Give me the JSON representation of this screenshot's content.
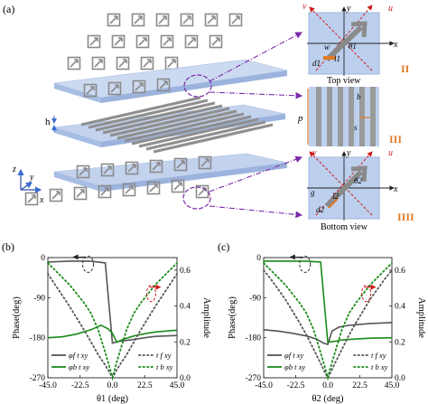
{
  "panel_a": {
    "label": "(a)",
    "h_label": "h",
    "p_label": "p",
    "axes": {
      "z": "z",
      "y": "y",
      "x": "x"
    },
    "top_view": {
      "u": "u",
      "v": "v",
      "x": "x",
      "y": "y",
      "w": "w",
      "l1": "l1",
      "d1": "d1",
      "theta1": "θ1",
      "caption": "Top view",
      "marker": "II"
    },
    "middle_view": {
      "b": "b",
      "s": "s",
      "marker": "III"
    },
    "bottom_view": {
      "u": "u",
      "v": "v",
      "x": "x",
      "y": "y",
      "g": "g",
      "l2": "l2",
      "d2": "d2",
      "theta2": "θ2",
      "caption": "Bottom view",
      "marker": "IIII"
    },
    "colors": {
      "plate": "#bcd0ee",
      "grating": "#a9a9a9",
      "arrow": "#8a8a8a",
      "dash": "#7a2aa8",
      "accent": "#e07b28"
    }
  },
  "chart_data": [
    {
      "type": "line",
      "panel": "(b)",
      "xlabel": "θ1 (deg)",
      "ylabel": "Phase(deg)",
      "y2label": "Amplitude",
      "xlim": [
        -45,
        45
      ],
      "ylim": [
        -270,
        0
      ],
      "y2lim": [
        0,
        0.67
      ],
      "xticks": [
        "-45.0",
        "-22.5",
        "0.0",
        "22.5",
        "45.0"
      ],
      "yticks": [
        "0",
        "-90",
        "-180",
        "-270"
      ],
      "y2ticks": [
        "0.0",
        "0.2",
        "0.4",
        "0.6"
      ],
      "legend": [
        "φf t xy",
        "φb t xy",
        "t f xy",
        "t b xy"
      ],
      "series": [
        {
          "name": "φf t xy",
          "axis": "left",
          "style": "solid",
          "color": "#555555",
          "x": [
            -45,
            -30,
            -15,
            -10,
            -5,
            0,
            5,
            10,
            15,
            22.5,
            30,
            45
          ],
          "y": [
            -10,
            -8,
            -8,
            -10,
            -12,
            -192,
            -188,
            -186,
            -184,
            -180,
            -177,
            -175
          ]
        },
        {
          "name": "φb t xy",
          "axis": "left",
          "style": "solid",
          "color": "#1a8a1a",
          "x": [
            -45,
            -35,
            -25,
            -15,
            -8,
            -3,
            0,
            3,
            8,
            15,
            22.5,
            30,
            45
          ],
          "y": [
            -180,
            -178,
            -172,
            -162,
            -152,
            -160,
            -170,
            -190,
            -183,
            -176,
            -171,
            -167,
            -163
          ]
        },
        {
          "name": "t f xy",
          "axis": "right",
          "style": "dotted",
          "color": "#555555",
          "x": [
            -45,
            -40,
            -30,
            -20,
            -15,
            -10,
            -5,
            -2,
            0,
            2,
            5,
            10,
            15,
            20,
            30,
            40,
            45
          ],
          "y": [
            0.58,
            0.52,
            0.4,
            0.27,
            0.2,
            0.13,
            0.07,
            0.03,
            0.0,
            0.03,
            0.07,
            0.13,
            0.2,
            0.27,
            0.4,
            0.52,
            0.58
          ]
        },
        {
          "name": "t b xy",
          "axis": "right",
          "style": "dotted",
          "color": "#1a8a1a",
          "x": [
            -45,
            -40,
            -30,
            -20,
            -15,
            -10,
            -5,
            -2,
            0,
            2,
            5,
            10,
            15,
            20,
            30,
            40,
            45
          ],
          "y": [
            0.64,
            0.6,
            0.52,
            0.42,
            0.36,
            0.27,
            0.14,
            0.06,
            0.0,
            0.06,
            0.14,
            0.27,
            0.36,
            0.42,
            0.52,
            0.6,
            0.64
          ]
        }
      ]
    },
    {
      "type": "line",
      "panel": "(c)",
      "xlabel": "θ2 (deg)",
      "ylabel": "Phase(deg)",
      "y2label": "Amplitude",
      "xlim": [
        -45,
        45
      ],
      "ylim": [
        -270,
        0
      ],
      "y2lim": [
        0,
        0.67
      ],
      "xticks": [
        "-45.0",
        "-22.5",
        "0.0",
        "22.5",
        "45.0"
      ],
      "yticks": [
        "0",
        "-90",
        "-180",
        "-270"
      ],
      "y2ticks": [
        "0.0",
        "0.2",
        "0.4",
        "0.6"
      ],
      "legend": [
        "φf t xy",
        "φb t xy",
        "t f xy",
        "t b xy"
      ],
      "series": [
        {
          "name": "φf t xy",
          "axis": "left",
          "style": "solid",
          "color": "#555555",
          "x": [
            -45,
            -35,
            -25,
            -15,
            -8,
            -3,
            0,
            3,
            8,
            15,
            22.5,
            30,
            45
          ],
          "y": [
            -162,
            -165,
            -170,
            -176,
            -183,
            -192,
            -195,
            -165,
            -156,
            -152,
            -150,
            -148,
            -146
          ]
        },
        {
          "name": "φb t xy",
          "axis": "left",
          "style": "solid",
          "color": "#1a8a1a",
          "x": [
            -45,
            -30,
            -15,
            -10,
            -5,
            0,
            5,
            10,
            20,
            30,
            45
          ],
          "y": [
            -8,
            -8,
            -8,
            -9,
            -10,
            -190,
            -188,
            -185,
            -183,
            -181,
            -180
          ]
        },
        {
          "name": "t f xy",
          "axis": "right",
          "style": "dotted",
          "color": "#555555",
          "x": [
            -45,
            -40,
            -30,
            -20,
            -15,
            -10,
            -5,
            -2,
            0,
            2,
            5,
            10,
            15,
            20,
            30,
            40,
            45
          ],
          "y": [
            0.6,
            0.55,
            0.44,
            0.31,
            0.24,
            0.16,
            0.08,
            0.03,
            0.0,
            0.03,
            0.08,
            0.16,
            0.24,
            0.31,
            0.44,
            0.55,
            0.6
          ]
        },
        {
          "name": "t b xy",
          "axis": "right",
          "style": "dotted",
          "color": "#1a8a1a",
          "x": [
            -45,
            -40,
            -30,
            -20,
            -15,
            -10,
            -5,
            -2,
            0,
            2,
            5,
            10,
            15,
            20,
            30,
            40,
            45
          ],
          "y": [
            0.64,
            0.6,
            0.52,
            0.42,
            0.36,
            0.27,
            0.14,
            0.06,
            0.0,
            0.06,
            0.14,
            0.27,
            0.36,
            0.42,
            0.52,
            0.6,
            0.64
          ]
        }
      ]
    }
  ]
}
